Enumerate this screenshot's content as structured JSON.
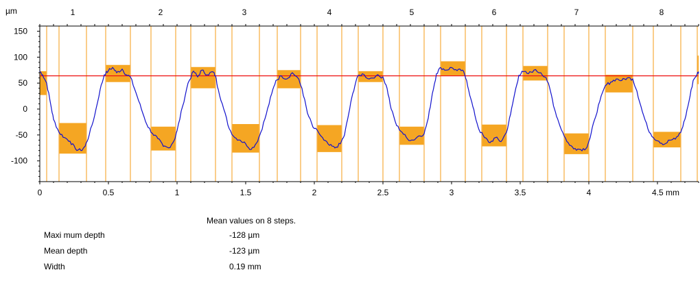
{
  "chart_data": {
    "type": "line",
    "x_unit": "mm",
    "y_unit": "µm",
    "xlim": [
      0,
      4.8
    ],
    "ylim": [
      -140,
      160
    ],
    "x_ticks": [
      0,
      0.5,
      1,
      1.5,
      2,
      2.5,
      3,
      3.5,
      4,
      4.5
    ],
    "x_tick_labels": [
      "0",
      "0.5",
      "1",
      "1.5",
      "2",
      "2.5",
      "3",
      "3.5",
      "4",
      "4.5 mm"
    ],
    "y_ticks": [
      150,
      100,
      50,
      0,
      -50,
      -100
    ],
    "y_tick_labels": [
      "150",
      "100",
      "50",
      "0",
      "-50",
      "-100"
    ],
    "y_unit_label": "µm",
    "step_labels": [
      "1",
      "2",
      "3",
      "4",
      "5",
      "6",
      "7",
      "8"
    ],
    "step_label_x": [
      0.24,
      0.88,
      1.49,
      2.11,
      2.71,
      3.31,
      3.91,
      4.53
    ],
    "reference_line_y": 64,
    "reference_color": "#ee1111",
    "profile_color": "#1010cc",
    "band_color": "#f5a623",
    "guide_color": "#f7b24a",
    "guides_x": [
      0.05,
      0.14,
      0.34,
      0.48,
      0.66,
      0.81,
      0.99,
      1.1,
      1.28,
      1.4,
      1.6,
      1.73,
      1.9,
      2.02,
      2.2,
      2.32,
      2.5,
      2.62,
      2.8,
      2.92,
      3.1,
      3.22,
      3.4,
      3.52,
      3.7,
      3.82,
      4.0,
      4.12,
      4.32,
      4.47,
      4.67,
      4.79
    ],
    "bands": [
      {
        "x0": 0.0,
        "x1": 0.05,
        "y0": 27,
        "y1": 73
      },
      {
        "x0": 0.14,
        "x1": 0.34,
        "y0": -86,
        "y1": -27
      },
      {
        "x0": 0.48,
        "x1": 0.66,
        "y0": 52,
        "y1": 85
      },
      {
        "x0": 0.81,
        "x1": 0.99,
        "y0": -80,
        "y1": -34
      },
      {
        "x0": 1.1,
        "x1": 1.28,
        "y0": 40,
        "y1": 81
      },
      {
        "x0": 1.4,
        "x1": 1.6,
        "y0": -84,
        "y1": -29
      },
      {
        "x0": 1.73,
        "x1": 1.9,
        "y0": 40,
        "y1": 75
      },
      {
        "x0": 2.02,
        "x1": 2.2,
        "y0": -83,
        "y1": -31
      },
      {
        "x0": 2.32,
        "x1": 2.5,
        "y0": 52,
        "y1": 73
      },
      {
        "x0": 2.62,
        "x1": 2.8,
        "y0": -69,
        "y1": -34
      },
      {
        "x0": 2.92,
        "x1": 3.1,
        "y0": 64,
        "y1": 92
      },
      {
        "x0": 3.22,
        "x1": 3.4,
        "y0": -72,
        "y1": -30
      },
      {
        "x0": 3.52,
        "x1": 3.7,
        "y0": 55,
        "y1": 83
      },
      {
        "x0": 3.82,
        "x1": 4.0,
        "y0": -87,
        "y1": -47
      },
      {
        "x0": 4.12,
        "x1": 4.32,
        "y0": 32,
        "y1": 66
      },
      {
        "x0": 4.47,
        "x1": 4.67,
        "y0": -74,
        "y1": -44
      },
      {
        "x0": 4.79,
        "x1": 4.8,
        "y0": 48,
        "y1": 103
      }
    ],
    "profile": [
      [
        0,
        73
      ],
      [
        0.02,
        66
      ],
      [
        0.05,
        50
      ],
      [
        0.08,
        8
      ],
      [
        0.1,
        -20
      ],
      [
        0.14,
        -45
      ],
      [
        0.18,
        -55
      ],
      [
        0.22,
        -62
      ],
      [
        0.26,
        -77
      ],
      [
        0.3,
        -80
      ],
      [
        0.33,
        -72
      ],
      [
        0.36,
        -50
      ],
      [
        0.4,
        -12
      ],
      [
        0.44,
        38
      ],
      [
        0.47,
        66
      ],
      [
        0.5,
        74
      ],
      [
        0.53,
        80
      ],
      [
        0.56,
        70
      ],
      [
        0.6,
        77
      ],
      [
        0.63,
        66
      ],
      [
        0.66,
        62
      ],
      [
        0.7,
        32
      ],
      [
        0.74,
        0
      ],
      [
        0.78,
        -30
      ],
      [
        0.82,
        -47
      ],
      [
        0.86,
        -57
      ],
      [
        0.9,
        -72
      ],
      [
        0.94,
        -75
      ],
      [
        0.98,
        -60
      ],
      [
        1.0,
        -42
      ],
      [
        1.04,
        5
      ],
      [
        1.08,
        50
      ],
      [
        1.12,
        73
      ],
      [
        1.15,
        62
      ],
      [
        1.18,
        75
      ],
      [
        1.22,
        66
      ],
      [
        1.26,
        72
      ],
      [
        1.28,
        64
      ],
      [
        1.3,
        38
      ],
      [
        1.34,
        0
      ],
      [
        1.38,
        -38
      ],
      [
        1.42,
        -55
      ],
      [
        1.46,
        -60
      ],
      [
        1.5,
        -67
      ],
      [
        1.54,
        -78
      ],
      [
        1.58,
        -65
      ],
      [
        1.61,
        -45
      ],
      [
        1.65,
        -10
      ],
      [
        1.69,
        30
      ],
      [
        1.72,
        55
      ],
      [
        1.76,
        64
      ],
      [
        1.8,
        58
      ],
      [
        1.84,
        70
      ],
      [
        1.88,
        60
      ],
      [
        1.91,
        40
      ],
      [
        1.95,
        -8
      ],
      [
        1.99,
        -35
      ],
      [
        2.03,
        -45
      ],
      [
        2.07,
        -60
      ],
      [
        2.11,
        -70
      ],
      [
        2.15,
        -75
      ],
      [
        2.19,
        -67
      ],
      [
        2.22,
        -50
      ],
      [
        2.25,
        -10
      ],
      [
        2.28,
        30
      ],
      [
        2.31,
        60
      ],
      [
        2.35,
        68
      ],
      [
        2.4,
        58
      ],
      [
        2.45,
        64
      ],
      [
        2.5,
        62
      ],
      [
        2.53,
        40
      ],
      [
        2.56,
        0
      ],
      [
        2.6,
        -32
      ],
      [
        2.64,
        -45
      ],
      [
        2.68,
        -58
      ],
      [
        2.72,
        -60
      ],
      [
        2.76,
        -52
      ],
      [
        2.8,
        -48
      ],
      [
        2.83,
        -18
      ],
      [
        2.86,
        30
      ],
      [
        2.89,
        68
      ],
      [
        2.92,
        80
      ],
      [
        2.96,
        75
      ],
      [
        3.0,
        80
      ],
      [
        3.04,
        74
      ],
      [
        3.08,
        75
      ],
      [
        3.11,
        55
      ],
      [
        3.14,
        20
      ],
      [
        3.17,
        -12
      ],
      [
        3.2,
        -40
      ],
      [
        3.24,
        -55
      ],
      [
        3.28,
        -65
      ],
      [
        3.32,
        -55
      ],
      [
        3.36,
        -63
      ],
      [
        3.4,
        -45
      ],
      [
        3.43,
        -10
      ],
      [
        3.46,
        30
      ],
      [
        3.49,
        65
      ],
      [
        3.52,
        72
      ],
      [
        3.56,
        68
      ],
      [
        3.6,
        75
      ],
      [
        3.65,
        70
      ],
      [
        3.69,
        60
      ],
      [
        3.72,
        35
      ],
      [
        3.75,
        0
      ],
      [
        3.78,
        -25
      ],
      [
        3.82,
        -52
      ],
      [
        3.86,
        -70
      ],
      [
        3.9,
        -76
      ],
      [
        3.94,
        -78
      ],
      [
        3.98,
        -76
      ],
      [
        4.01,
        -55
      ],
      [
        4.04,
        -22
      ],
      [
        4.08,
        15
      ],
      [
        4.12,
        45
      ],
      [
        4.16,
        52
      ],
      [
        4.2,
        58
      ],
      [
        4.24,
        55
      ],
      [
        4.28,
        60
      ],
      [
        4.32,
        58
      ],
      [
        4.35,
        35
      ],
      [
        4.39,
        -5
      ],
      [
        4.43,
        -38
      ],
      [
        4.47,
        -55
      ],
      [
        4.51,
        -62
      ],
      [
        4.55,
        -68
      ],
      [
        4.59,
        -60
      ],
      [
        4.63,
        -58
      ],
      [
        4.67,
        -45
      ],
      [
        4.7,
        -20
      ],
      [
        4.73,
        15
      ],
      [
        4.76,
        55
      ],
      [
        4.79,
        68
      ],
      [
        4.8,
        72
      ]
    ],
    "caption": "Mean values on 8 steps.",
    "stats": [
      {
        "label": "Maxi mum depth",
        "value": "-128 µm"
      },
      {
        "label": "Mean depth",
        "value": "-123 µm"
      },
      {
        "label": "Width",
        "value": "0.19 mm"
      }
    ]
  }
}
